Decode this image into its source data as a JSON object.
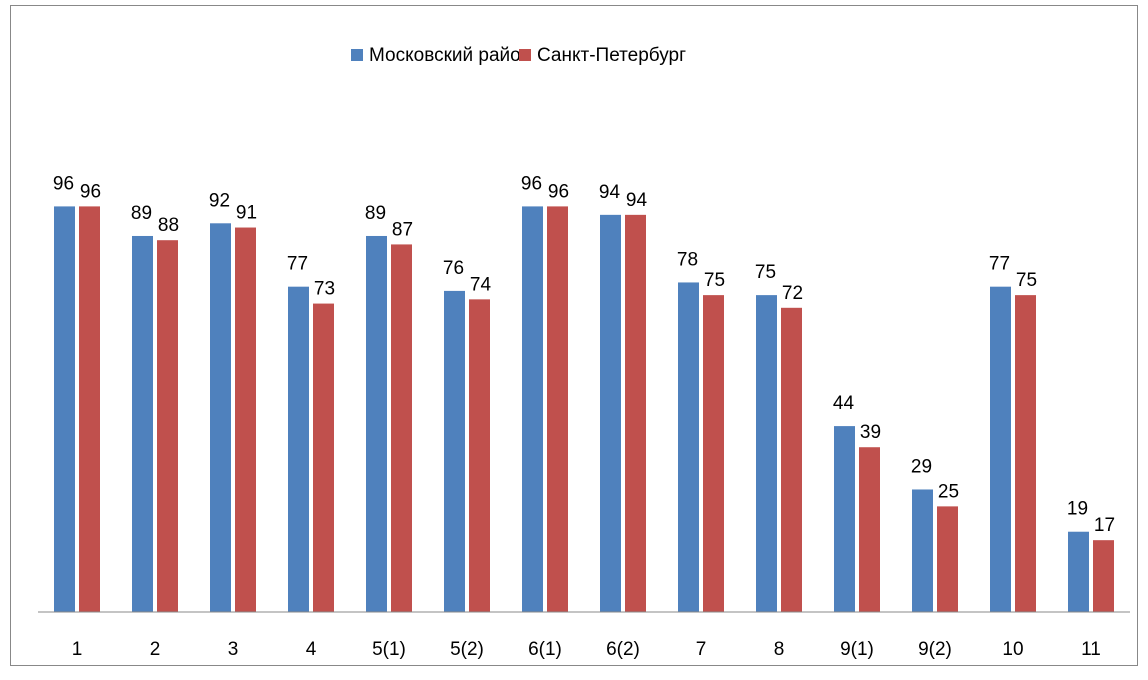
{
  "chart_data": {
    "type": "bar",
    "categories": [
      "1",
      "2",
      "3",
      "4",
      "5(1)",
      "5(2)",
      "6(1)",
      "6(2)",
      "7",
      "8",
      "9(1)",
      "9(2)",
      "10",
      "11"
    ],
    "series": [
      {
        "name": "Московский район",
        "color": "#4f81bd",
        "values": [
          96,
          89,
          92,
          77,
          89,
          76,
          96,
          94,
          78,
          75,
          44,
          29,
          77,
          19
        ]
      },
      {
        "name": "Санкт-Петербург",
        "color": "#c0504d",
        "values": [
          96,
          88,
          91,
          73,
          87,
          74,
          96,
          94,
          75,
          72,
          39,
          25,
          75,
          17
        ]
      }
    ],
    "ylim": [
      0,
      120
    ],
    "legend": "top"
  }
}
